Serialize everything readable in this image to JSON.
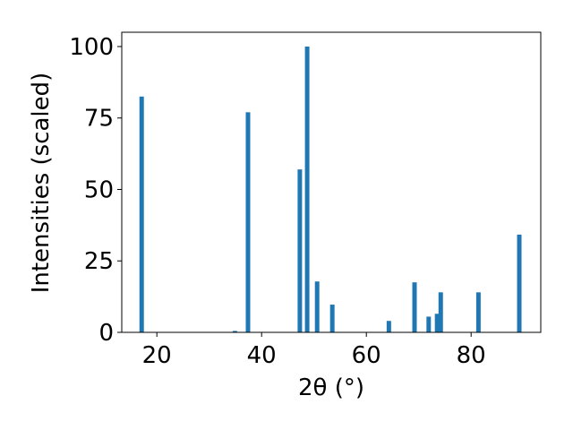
{
  "chart_data": {
    "type": "bar",
    "x": [
      17.1,
      34.9,
      37.4,
      47.3,
      48.7,
      50.6,
      53.5,
      64.3,
      69.2,
      71.9,
      73.5,
      74.2,
      81.4,
      89.2
    ],
    "values": [
      82.5,
      0.5,
      77,
      57,
      100,
      17.8,
      9.7,
      4,
      17.5,
      5.5,
      6.5,
      14,
      14,
      34.2
    ],
    "color": "#1f77b4",
    "xlabel": "2θ (°)",
    "ylabel": "Intensities (scaled)",
    "xlim": [
      13.3,
      93.3
    ],
    "ylim": [
      0,
      105
    ],
    "xticks": [
      20,
      40,
      60,
      80
    ],
    "yticks": [
      0,
      25,
      50,
      75,
      100
    ]
  }
}
